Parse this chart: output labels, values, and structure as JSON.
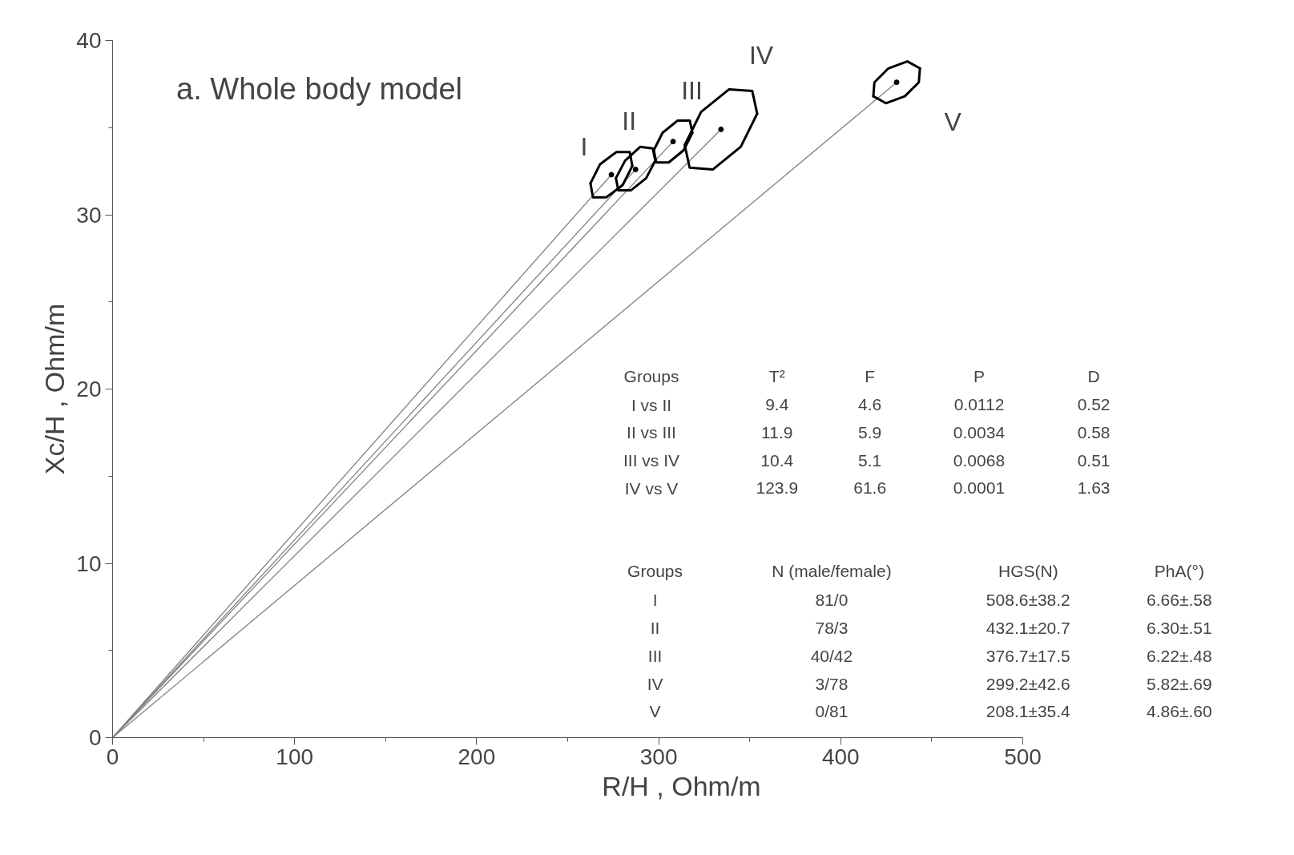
{
  "chart_data": {
    "type": "scatter",
    "title": "a. Whole body model",
    "xlabel": "R/H , Ohm/m",
    "ylabel": "Xc/H , Ohm/m",
    "xlim": [
      0,
      500
    ],
    "ylim": [
      0,
      40
    ],
    "xticks": [
      0,
      {
        "value": 50,
        "label": null
      },
      100,
      {
        "value": 150,
        "label": null
      },
      200,
      {
        "value": 250,
        "label": null
      },
      300,
      {
        "value": 350,
        "label": null
      },
      400,
      {
        "value": 450,
        "label": null
      },
      500
    ],
    "yticks": [
      0,
      {
        "value": 5,
        "label": null
      },
      10,
      {
        "value": 15,
        "label": null
      },
      20,
      {
        "value": 25,
        "label": null
      },
      30,
      {
        "value": 35,
        "label": null
      },
      40
    ],
    "grid": false,
    "series": [
      {
        "type": "line",
        "color": "#808080",
        "x": [
          0,
          274
        ],
        "values": [
          0,
          32.3
        ]
      },
      {
        "type": "line",
        "color": "#808080",
        "x": [
          0,
          287.3
        ],
        "values": [
          0,
          32.6
        ]
      },
      {
        "type": "line",
        "color": "#808080",
        "x": [
          0,
          307.9
        ],
        "values": [
          0,
          34.2
        ]
      },
      {
        "type": "line",
        "color": "#808080",
        "x": [
          0,
          334.2
        ],
        "values": [
          0,
          34.9
        ]
      },
      {
        "type": "line",
        "color": "#808080",
        "x": [
          0,
          430.7
        ],
        "values": [
          0,
          37.6
        ]
      },
      {
        "type": "line",
        "color": "#000000",
        "x": [
          262.5,
          267.8,
          276.8,
          284.1,
          285.5
        ],
        "values": [
          31.8,
          32.9,
          33.6,
          33.6,
          32.8
        ]
      },
      {
        "type": "line",
        "color": "#000000",
        "x": [
          262.5,
          263.9,
          271.2,
          280.2,
          285.5
        ],
        "values": [
          31.8,
          31.0,
          31.0,
          31.7,
          32.8
        ]
      },
      {
        "type": "line",
        "color": "#000000",
        "x": [
          276.5,
          281.5,
          289.9,
          296.8,
          298.1
        ],
        "values": [
          32.1,
          33.1,
          33.9,
          33.8,
          33.1
        ]
      },
      {
        "type": "line",
        "color": "#000000",
        "x": [
          276.5,
          277.8,
          284.7,
          293.1,
          298.1
        ],
        "values": [
          32.1,
          31.4,
          31.4,
          32.1,
          33.1
        ]
      },
      {
        "type": "line",
        "color": "#000000",
        "x": [
          297.3,
          302.1,
          310.3,
          317.1,
          318.5
        ],
        "values": [
          33.7,
          34.7,
          35.4,
          35.4,
          34.7
        ]
      },
      {
        "type": "line",
        "color": "#000000",
        "x": [
          297.3,
          298.7,
          305.5,
          313.7,
          318.5
        ],
        "values": [
          33.7,
          33.0,
          33.0,
          33.7,
          34.7
        ]
      },
      {
        "type": "line",
        "color": "#000000",
        "x": [
          314.3,
          323.3,
          338.7,
          351.4,
          354.1
        ],
        "values": [
          34.0,
          35.9,
          37.2,
          37.1,
          35.8
        ]
      },
      {
        "type": "line",
        "color": "#000000",
        "x": [
          314.3,
          317.0,
          329.8,
          345.1,
          354.1
        ],
        "values": [
          34.0,
          32.7,
          32.6,
          33.9,
          35.8
        ]
      },
      {
        "type": "line",
        "color": "#000000",
        "x": [
          417.9,
          418.5,
          426.2,
          436.6,
          443.5
        ],
        "values": [
          36.8,
          37.6,
          38.4,
          38.8,
          38.4
        ]
      },
      {
        "type": "line",
        "color": "#000000",
        "x": [
          417.9,
          424.8,
          435.2,
          442.9,
          443.5
        ],
        "values": [
          36.8,
          36.4,
          36.8,
          37.6,
          38.4
        ]
      },
      {
        "marker": "circle",
        "color": "#000000",
        "x": [
          274,
          287.3,
          307.9,
          334.2,
          430.7
        ],
        "values": [
          32.3,
          32.6,
          34.2,
          34.9,
          37.6
        ]
      }
    ],
    "annotations": [
      {
        "text": "I",
        "x": 267.8,
        "y": 32.9
      },
      {
        "text": "II",
        "x": 289.9,
        "y": 33.9
      },
      {
        "text": "III",
        "x": 310.3,
        "y": 35.4
      },
      {
        "text": "IV",
        "x": 338.7,
        "y": 37.2
      },
      {
        "text": "V",
        "x": 435.2,
        "y": 36.8
      },
      "Groups\tT²\tF\tP\tD\nI vs II\t9.4\t4.6\t0.0112\t0.52\nII vs III\t11.9\t5.9\t0.0034\t0.58\nIII vs IV\t10.4\t5.1\t0.0068\t0.51\nIV vs V\t123.9\t61.6\t0.0001\t1.63",
      "Groups\tN (male/female)\tHGS(N)\tPhA(°)\nI\t81/0\t508.6±38.2\t6.66±.58\nII\t78/3\t432.1±20.7\t6.30±.51\nIII\t40/42\t376.7±17.5\t6.22±.48\nIV\t3/78\t299.2±42.6\t5.82±.69\nV\t0/81\t208.1±35.4\t4.86±.60"
    ]
  }
}
